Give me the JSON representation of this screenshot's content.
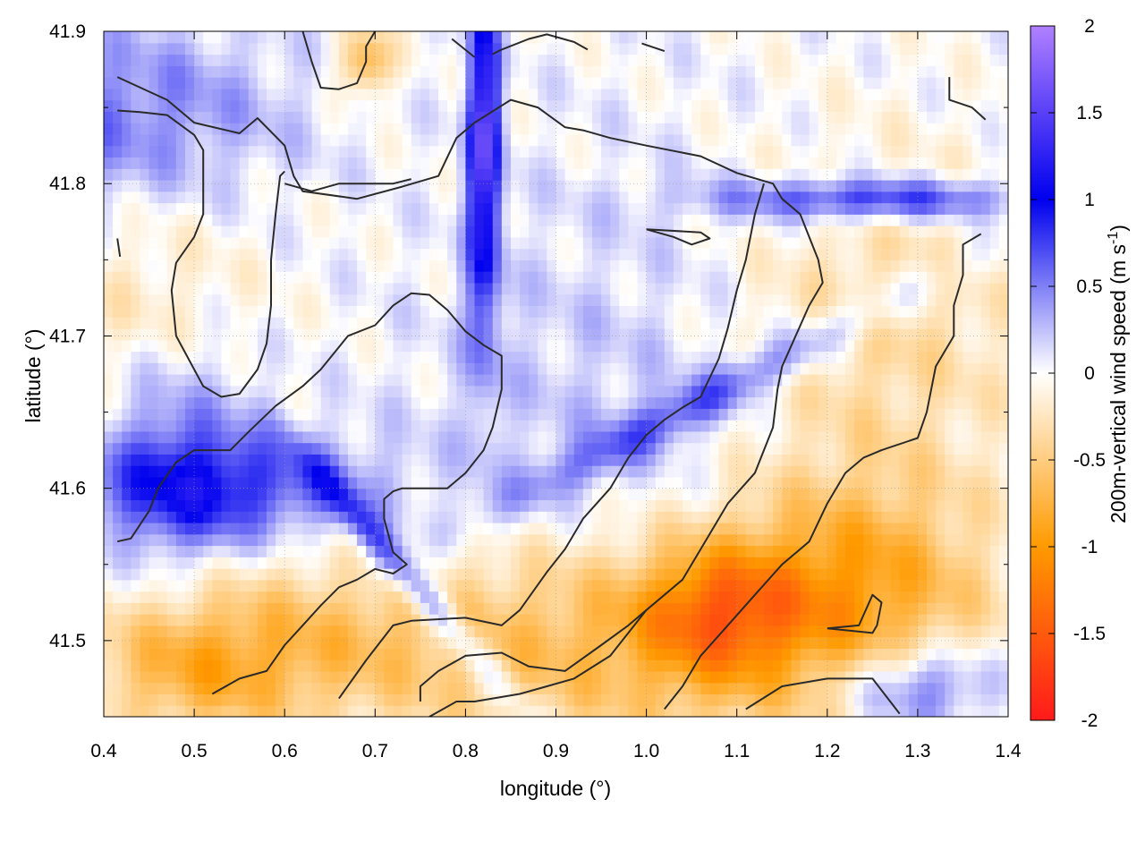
{
  "chart_data": {
    "type": "heatmap",
    "xlabel": "longitude (°)",
    "ylabel": "latitude (°)",
    "colorbar_label": "200m-vertical wind speed",
    "colorbar_unit": "(m s",
    "colorbar_unit_exp": "-1",
    "colorbar_unit_close": ")",
    "xlim": [
      0.4,
      1.4
    ],
    "ylim": [
      41.45,
      41.9
    ],
    "clim": [
      -2,
      2
    ],
    "grid": true,
    "x_ticks": [
      0.4,
      0.5,
      0.6,
      0.7,
      0.8,
      0.9,
      1.0,
      1.1,
      1.2,
      1.3,
      1.4
    ],
    "x_tick_labels": [
      "0.4",
      "0.5",
      "0.6",
      "0.7",
      "0.8",
      "0.9",
      "1.0",
      "1.1",
      "1.2",
      "1.3",
      "1.4"
    ],
    "y_ticks": [
      41.5,
      41.6,
      41.7,
      41.8,
      41.9
    ],
    "y_tick_labels": [
      "41.5",
      "41.6",
      "41.7",
      "41.8",
      "41.9"
    ],
    "colorbar_ticks": [
      2,
      1.5,
      1,
      0.5,
      0,
      -0.5,
      -1,
      -1.5,
      -2
    ],
    "colorbar_tick_labels": [
      "2",
      "1.5",
      "1",
      "0.5",
      "0",
      "-0.5",
      "-1",
      "-1.5",
      "-2"
    ],
    "colormap": [
      {
        "v": -2.0,
        "c": "#ff1a1a"
      },
      {
        "v": -1.0,
        "c": "#ff9a00"
      },
      {
        "v": 0.0,
        "c": "#ffffff"
      },
      {
        "v": 1.0,
        "c": "#0000ee"
      },
      {
        "v": 2.0,
        "c": "#b080ff"
      }
    ],
    "features": [
      {
        "x": 0.82,
        "y": 41.85,
        "v": 1.2,
        "sx": 0.012,
        "sy": 0.06,
        "rot": 0
      },
      {
        "x": 0.82,
        "y": 41.76,
        "v": 0.6,
        "sx": 0.015,
        "sy": 0.07,
        "rot": 0
      },
      {
        "x": 0.54,
        "y": 41.6,
        "v": 0.7,
        "sx": 0.12,
        "sy": 0.025,
        "rot": 0
      },
      {
        "x": 0.48,
        "y": 41.62,
        "v": 0.5,
        "sx": 0.06,
        "sy": 0.06,
        "rot": 0
      },
      {
        "x": 0.74,
        "y": 41.54,
        "v": 0.8,
        "sx": 0.1,
        "sy": 0.01,
        "rot": -0.6
      },
      {
        "x": 1.25,
        "y": 41.79,
        "v": 0.9,
        "sx": 0.12,
        "sy": 0.01,
        "rot": 0
      },
      {
        "x": 1.07,
        "y": 41.66,
        "v": 0.6,
        "sx": 0.18,
        "sy": 0.012,
        "rot": 0.3
      },
      {
        "x": 1.3,
        "y": 41.47,
        "v": 0.8,
        "sx": 0.06,
        "sy": 0.02,
        "rot": 0
      },
      {
        "x": 0.2,
        "y": 41.82,
        "v": 0.4,
        "sx": 0.15,
        "sy": 0.05,
        "rot": 0
      },
      {
        "x": 0.45,
        "y": 41.85,
        "v": 0.4,
        "sx": 0.12,
        "sy": 0.04,
        "rot": 0
      },
      {
        "x": 1.0,
        "y": 41.7,
        "v": 0.15,
        "sx": 0.15,
        "sy": 0.1,
        "rot": 0
      },
      {
        "x": 1.0,
        "y": 41.5,
        "v": -0.7,
        "sx": 0.2,
        "sy": 0.05,
        "rot": 0
      },
      {
        "x": 1.23,
        "y": 41.54,
        "v": -0.7,
        "sx": 0.1,
        "sy": 0.05,
        "rot": 0
      },
      {
        "x": 0.6,
        "y": 41.5,
        "v": -0.5,
        "sx": 0.15,
        "sy": 0.04,
        "rot": 0
      },
      {
        "x": 1.25,
        "y": 41.7,
        "v": -0.4,
        "sx": 0.12,
        "sy": 0.08,
        "rot": 0
      },
      {
        "x": 0.9,
        "y": 41.62,
        "v": 0.1,
        "sx": 0.15,
        "sy": 0.08,
        "rot": 0
      },
      {
        "x": 0.45,
        "y": 41.72,
        "v": -0.3,
        "sx": 0.08,
        "sy": 0.05,
        "rot": 0
      },
      {
        "x": 0.5,
        "y": 41.48,
        "v": -0.5,
        "sx": 0.08,
        "sy": 0.03,
        "rot": 0
      },
      {
        "x": 0.69,
        "y": 41.88,
        "v": -0.8,
        "sx": 0.02,
        "sy": 0.015,
        "rot": 0
      },
      {
        "x": 1.08,
        "y": 41.52,
        "v": -0.8,
        "sx": 0.06,
        "sy": 0.03,
        "rot": 0
      }
    ],
    "contours": [
      [
        [
          0.415,
          41.87
        ],
        [
          0.47,
          41.855
        ],
        [
          0.5,
          41.84
        ],
        [
          0.55,
          41.833
        ],
        [
          0.57,
          41.843
        ],
        [
          0.6,
          41.825
        ],
        [
          0.61,
          41.805
        ],
        [
          0.62,
          41.795
        ],
        [
          0.68,
          41.79
        ],
        [
          0.73,
          41.798
        ],
        [
          0.77,
          41.805
        ],
        [
          0.79,
          41.83
        ],
        [
          0.81,
          41.84
        ],
        [
          0.85,
          41.855
        ],
        [
          0.88,
          41.85
        ],
        [
          0.91,
          41.837
        ],
        [
          0.93,
          41.835
        ],
        [
          0.96,
          41.83
        ],
        [
          1.0,
          41.825
        ],
        [
          1.06,
          41.818
        ],
        [
          1.1,
          41.807
        ],
        [
          1.14,
          41.8
        ],
        [
          1.15,
          41.79
        ],
        [
          1.17,
          41.78
        ],
        [
          1.19,
          41.75
        ],
        [
          1.195,
          41.735
        ],
        [
          1.18,
          41.72
        ],
        [
          1.15,
          41.68
        ],
        [
          1.145,
          41.665
        ],
        [
          1.14,
          41.64
        ],
        [
          1.12,
          41.61
        ],
        [
          1.09,
          41.59
        ],
        [
          1.07,
          41.57
        ],
        [
          1.04,
          41.54
        ],
        [
          1.0,
          41.52
        ],
        [
          0.96,
          41.49
        ],
        [
          0.92,
          41.475
        ],
        [
          0.89,
          41.47
        ],
        [
          0.86,
          41.465
        ],
        [
          0.81,
          41.46
        ],
        [
          0.79,
          41.46
        ],
        [
          0.76,
          41.45
        ]
      ],
      [
        [
          0.415,
          41.848
        ],
        [
          0.44,
          41.847
        ],
        [
          0.47,
          41.845
        ],
        [
          0.5,
          41.832
        ],
        [
          0.51,
          41.822
        ],
        [
          0.51,
          41.81
        ],
        [
          0.51,
          41.795
        ],
        [
          0.51,
          41.78
        ],
        [
          0.5,
          41.765
        ],
        [
          0.48,
          41.748
        ],
        [
          0.475,
          41.73
        ],
        [
          0.48,
          41.7
        ],
        [
          0.5,
          41.678
        ],
        [
          0.51,
          41.667
        ],
        [
          0.53,
          41.66
        ],
        [
          0.55,
          41.662
        ],
        [
          0.57,
          41.678
        ],
        [
          0.58,
          41.695
        ],
        [
          0.585,
          41.72
        ],
        [
          0.585,
          41.75
        ],
        [
          0.59,
          41.78
        ],
        [
          0.595,
          41.805
        ],
        [
          0.6,
          41.808
        ]
      ],
      [
        [
          0.6,
          41.8
        ],
        [
          0.63,
          41.795
        ],
        [
          0.66,
          41.8
        ],
        [
          0.68,
          41.8
        ],
        [
          0.72,
          41.8
        ],
        [
          0.74,
          41.803
        ]
      ],
      [
        [
          0.62,
          41.9
        ],
        [
          0.63,
          41.88
        ],
        [
          0.64,
          41.863
        ],
        [
          0.66,
          41.862
        ],
        [
          0.68,
          41.866
        ],
        [
          0.69,
          41.88
        ],
        [
          0.69,
          41.89
        ],
        [
          0.7,
          41.9
        ]
      ],
      [
        [
          0.785,
          41.895
        ],
        [
          0.81,
          41.883
        ]
      ],
      [
        [
          0.83,
          41.885
        ],
        [
          0.84,
          41.888
        ],
        [
          0.87,
          41.895
        ],
        [
          0.89,
          41.898
        ],
        [
          0.92,
          41.893
        ],
        [
          0.935,
          41.888
        ]
      ],
      [
        [
          0.995,
          41.892
        ],
        [
          1.02,
          41.887
        ]
      ],
      [
        [
          1.335,
          41.87
        ],
        [
          1.335,
          41.855
        ],
        [
          1.36,
          41.85
        ],
        [
          1.375,
          41.842
        ]
      ],
      [
        [
          1.0,
          41.77
        ],
        [
          1.03,
          41.765
        ],
        [
          1.05,
          41.76
        ],
        [
          1.07,
          41.764
        ],
        [
          1.06,
          41.768
        ],
        [
          1.0,
          41.77
        ]
      ],
      [
        [
          0.415,
          41.764
        ],
        [
          0.418,
          41.752
        ]
      ],
      [
        [
          0.415,
          41.565
        ],
        [
          0.43,
          41.567
        ],
        [
          0.45,
          41.585
        ],
        [
          0.46,
          41.6
        ],
        [
          0.48,
          41.617
        ],
        [
          0.5,
          41.625
        ],
        [
          0.54,
          41.625
        ],
        [
          0.56,
          41.637
        ],
        [
          0.59,
          41.654
        ],
        [
          0.62,
          41.667
        ],
        [
          0.64,
          41.678
        ],
        [
          0.67,
          41.7
        ],
        [
          0.7,
          41.707
        ],
        [
          0.72,
          41.72
        ],
        [
          0.74,
          41.728
        ],
        [
          0.76,
          41.727
        ],
        [
          0.78,
          41.717
        ],
        [
          0.8,
          41.703
        ],
        [
          0.82,
          41.694
        ],
        [
          0.84,
          41.687
        ],
        [
          0.84,
          41.665
        ],
        [
          0.83,
          41.64
        ],
        [
          0.82,
          41.625
        ],
        [
          0.8,
          41.61
        ],
        [
          0.78,
          41.6
        ],
        [
          0.73,
          41.6
        ],
        [
          0.72,
          41.598
        ],
        [
          0.71,
          41.593
        ],
        [
          0.71,
          41.58
        ],
        [
          0.72,
          41.558
        ],
        [
          0.735,
          41.55
        ],
        [
          0.72,
          41.544
        ],
        [
          0.7,
          41.547
        ],
        [
          0.68,
          41.54
        ],
        [
          0.66,
          41.535
        ],
        [
          0.64,
          41.523
        ],
        [
          0.62,
          41.51
        ],
        [
          0.6,
          41.497
        ],
        [
          0.58,
          41.48
        ],
        [
          0.55,
          41.475
        ],
        [
          0.52,
          41.465
        ]
      ],
      [
        [
          0.66,
          41.462
        ],
        [
          0.69,
          41.487
        ],
        [
          0.72,
          41.51
        ],
        [
          0.74,
          41.513
        ],
        [
          0.8,
          41.515
        ],
        [
          0.84,
          41.51
        ],
        [
          0.86,
          41.52
        ],
        [
          0.89,
          41.545
        ],
        [
          0.91,
          41.56
        ],
        [
          0.93,
          41.58
        ],
        [
          0.96,
          41.6
        ],
        [
          0.98,
          41.62
        ],
        [
          1.0,
          41.635
        ],
        [
          1.02,
          41.645
        ],
        [
          1.04,
          41.653
        ],
        [
          1.06,
          41.66
        ],
        [
          1.08,
          41.685
        ],
        [
          1.09,
          41.705
        ],
        [
          1.1,
          41.73
        ],
        [
          1.11,
          41.75
        ],
        [
          1.12,
          41.78
        ],
        [
          1.13,
          41.8
        ]
      ],
      [
        [
          0.75,
          41.46
        ],
        [
          0.75,
          41.47
        ],
        [
          0.77,
          41.48
        ],
        [
          0.8,
          41.49
        ],
        [
          0.84,
          41.492
        ],
        [
          0.87,
          41.483
        ],
        [
          0.91,
          41.48
        ],
        [
          0.95,
          41.497
        ],
        [
          0.98,
          41.51
        ],
        [
          1.0,
          41.52
        ]
      ],
      [
        [
          1.02,
          41.455
        ],
        [
          1.04,
          41.47
        ],
        [
          1.06,
          41.49
        ],
        [
          1.09,
          41.51
        ],
        [
          1.12,
          41.53
        ],
        [
          1.15,
          41.55
        ],
        [
          1.18,
          41.565
        ],
        [
          1.2,
          41.59
        ],
        [
          1.22,
          41.61
        ],
        [
          1.24,
          41.62
        ],
        [
          1.26,
          41.625
        ],
        [
          1.3,
          41.633
        ],
        [
          1.31,
          41.65
        ],
        [
          1.32,
          41.68
        ],
        [
          1.34,
          41.7
        ],
        [
          1.34,
          41.72
        ],
        [
          1.35,
          41.74
        ],
        [
          1.35,
          41.76
        ],
        [
          1.37,
          41.767
        ]
      ],
      [
        [
          1.11,
          41.455
        ],
        [
          1.15,
          41.47
        ],
        [
          1.2,
          41.475
        ],
        [
          1.25,
          41.475
        ],
        [
          1.28,
          41.452
        ]
      ],
      [
        [
          1.2,
          41.508
        ],
        [
          1.25,
          41.505
        ],
        [
          1.255,
          41.51
        ],
        [
          1.26,
          41.525
        ],
        [
          1.25,
          41.53
        ],
        [
          1.235,
          41.51
        ],
        [
          1.2,
          41.508
        ]
      ]
    ]
  }
}
